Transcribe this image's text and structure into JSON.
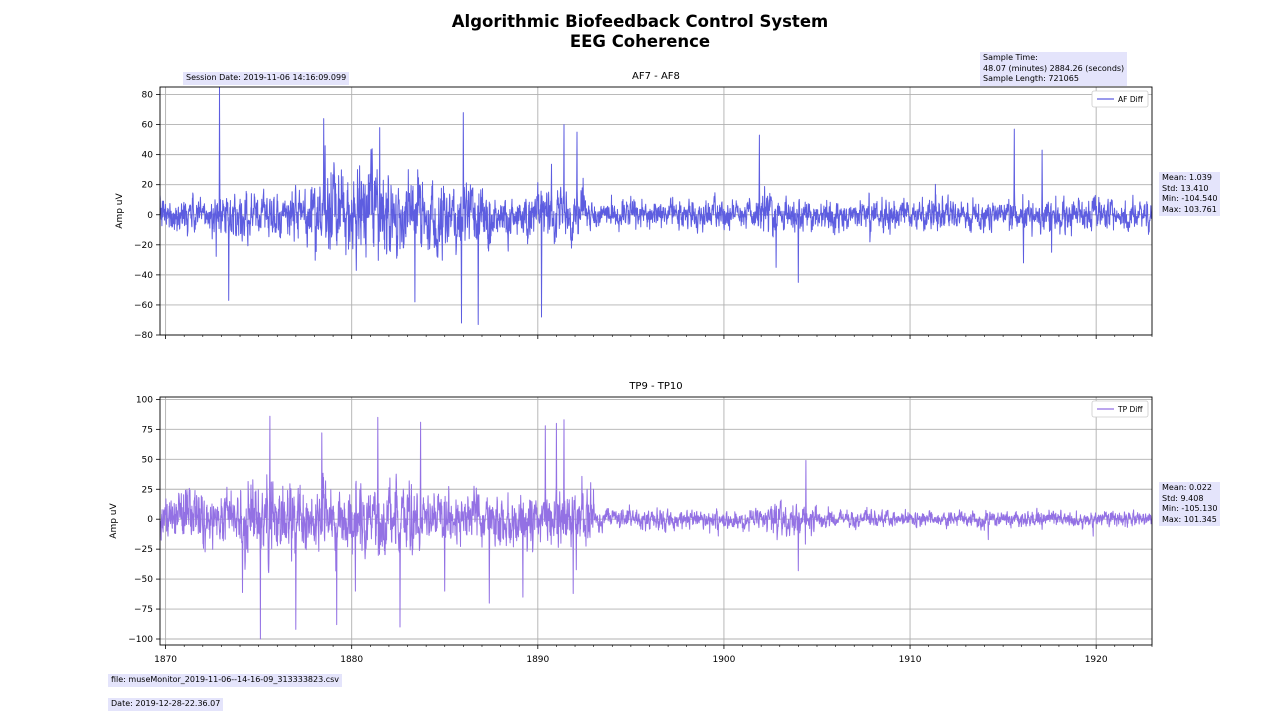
{
  "figure": {
    "title_line1": "Algorithmic Biofeedback Control System",
    "title_line2": "EEG Coherence",
    "session_date": "Session Date: 2019-11-06 14:16:09.099",
    "sample_time": [
      "Sample Time:",
      "48.07 (minutes) 2884.26 (seconds)",
      "Sample Length: 721065"
    ],
    "file_label": "file: museMonitor_2019-11-06--14-16-09_313333823.csv",
    "date_label": "Date: 2019-12-28-22.36.07"
  },
  "colors": {
    "af": "#5d5de0",
    "tp": "#9371e4",
    "grid": "#b0b0b0",
    "box": "#e4e4fb"
  },
  "chart_data": [
    {
      "type": "line",
      "title": "AF7 - AF8",
      "ylabel": "Amp uV",
      "xlim": [
        1869.7,
        1923.0
      ],
      "ylim": [
        -80,
        85
      ],
      "yticks": [
        -80,
        -60,
        -40,
        -20,
        0,
        20,
        40,
        60,
        80
      ],
      "xticks": [
        1870,
        1880,
        1890,
        1900,
        1910,
        1920
      ],
      "xtick_labels_shown": false,
      "grid": true,
      "legend": "top-right",
      "series": [
        {
          "name": "AF Diff",
          "color": "#5d5de0",
          "segments": [
            {
              "from": 1869.7,
              "to": 1872.5,
              "std": 9
            },
            {
              "from": 1872.5,
              "to": 1877.5,
              "std": 11
            },
            {
              "from": 1877.5,
              "to": 1882.0,
              "std": 22
            },
            {
              "from": 1882.0,
              "to": 1887.5,
              "std": 18
            },
            {
              "from": 1887.5,
              "to": 1892.5,
              "std": 12
            },
            {
              "from": 1892.5,
              "to": 1901.8,
              "std": 7
            },
            {
              "from": 1901.8,
              "to": 1903.0,
              "std": 11
            },
            {
              "from": 1903.0,
              "to": 1913.0,
              "std": 8
            },
            {
              "from": 1913.0,
              "to": 1923.0,
              "std": 8
            }
          ],
          "peaks": [
            [
              1872.9,
              85
            ],
            [
              1873.4,
              -57
            ],
            [
              1878.5,
              64
            ],
            [
              1881.5,
              58
            ],
            [
              1883.4,
              -58
            ],
            [
              1885.9,
              -72
            ],
            [
              1886.0,
              68
            ],
            [
              1886.8,
              -73
            ],
            [
              1890.2,
              -68
            ],
            [
              1891.4,
              60
            ],
            [
              1892.1,
              55
            ],
            [
              1901.9,
              53
            ],
            [
              1902.8,
              -35
            ],
            [
              1904.0,
              -45
            ],
            [
              1915.6,
              57
            ],
            [
              1916.1,
              -32
            ],
            [
              1917.1,
              43
            ],
            [
              1917.6,
              -25
            ]
          ],
          "stats": [
            "Mean: 1.039",
            "Std: 13.410",
            "Min: -104.540",
            "Max: 103.761"
          ]
        }
      ]
    },
    {
      "type": "line",
      "title": "TP9 - TP10",
      "ylabel": "Amp uV",
      "xlim": [
        1869.7,
        1923.0
      ],
      "ylim": [
        -105,
        102
      ],
      "yticks": [
        -100,
        -75,
        -50,
        -25,
        0,
        25,
        50,
        75,
        100
      ],
      "xticks": [
        1870,
        1880,
        1890,
        1900,
        1910,
        1920
      ],
      "grid": true,
      "legend": "top-right",
      "series": [
        {
          "name": "TP Diff",
          "color": "#9371e4",
          "segments": [
            {
              "from": 1869.7,
              "to": 1874.0,
              "std": 17
            },
            {
              "from": 1874.0,
              "to": 1877.0,
              "std": 25
            },
            {
              "from": 1877.0,
              "to": 1880.0,
              "std": 20
            },
            {
              "from": 1880.0,
              "to": 1883.5,
              "std": 24
            },
            {
              "from": 1883.5,
              "to": 1889.5,
              "std": 16
            },
            {
              "from": 1889.5,
              "to": 1893.0,
              "std": 18
            },
            {
              "from": 1893.0,
              "to": 1902.5,
              "std": 6.5
            },
            {
              "from": 1902.5,
              "to": 1905.0,
              "std": 11
            },
            {
              "from": 1905.0,
              "to": 1923.0,
              "std": 5
            }
          ],
          "peaks": [
            [
              1875.1,
              -100
            ],
            [
              1875.6,
              86
            ],
            [
              1877.0,
              -92
            ],
            [
              1878.4,
              72
            ],
            [
              1879.2,
              -88
            ],
            [
              1880.2,
              -60
            ],
            [
              1881.4,
              85
            ],
            [
              1882.6,
              -90
            ],
            [
              1883.7,
              81
            ],
            [
              1885.0,
              -60
            ],
            [
              1887.4,
              -70
            ],
            [
              1889.2,
              -65
            ],
            [
              1890.4,
              78
            ],
            [
              1891.0,
              80
            ],
            [
              1891.4,
              83
            ],
            [
              1891.9,
              -62
            ],
            [
              1904.4,
              49
            ],
            [
              1904.0,
              -43
            ],
            [
              1914.2,
              -17
            ]
          ],
          "stats": [
            "Mean: 0.022",
            "Std: 9.408",
            "Min: -105.130",
            "Max: 101.345"
          ]
        }
      ]
    }
  ]
}
